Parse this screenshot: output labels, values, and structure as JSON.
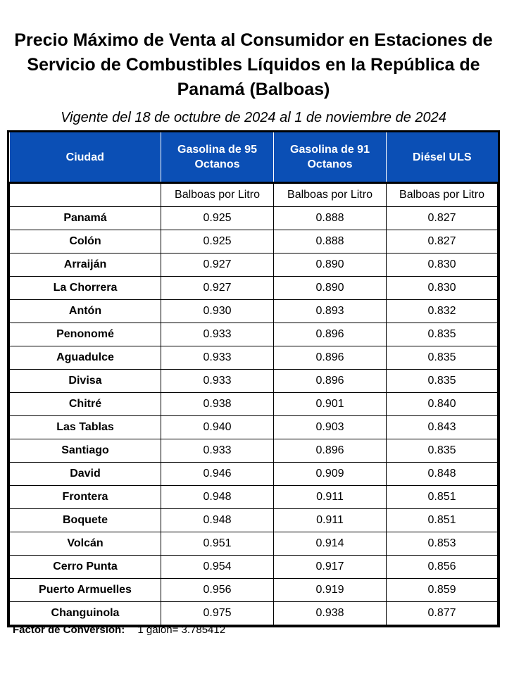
{
  "title": "Precio Máximo de Venta al Consumidor en Estaciones de Servicio de Combustibles Líquidos en la República de Panamá (Balboas)",
  "subtitle": "Vigente del 18 de octubre de 2024 al 1 de noviembre  de 2024",
  "table": {
    "headers": [
      "Ciudad",
      "Gasolina de 95 Octanos",
      "Gasolina de 91 Octanos",
      "Diésel ULS"
    ],
    "header_color": "#0b4fb5",
    "units": [
      "",
      "Balboas por Litro",
      "Balboas por Litro",
      "Balboas por Litro"
    ],
    "rows": [
      {
        "city": "Panamá",
        "g95": "0.925",
        "g91": "0.888",
        "diesel": "0.827"
      },
      {
        "city": "Colón",
        "g95": "0.925",
        "g91": "0.888",
        "diesel": "0.827"
      },
      {
        "city": "Arraiján",
        "g95": "0.927",
        "g91": "0.890",
        "diesel": "0.830"
      },
      {
        "city": "La Chorrera",
        "g95": "0.927",
        "g91": "0.890",
        "diesel": "0.830"
      },
      {
        "city": "Antón",
        "g95": "0.930",
        "g91": "0.893",
        "diesel": "0.832"
      },
      {
        "city": "Penonomé",
        "g95": "0.933",
        "g91": "0.896",
        "diesel": "0.835"
      },
      {
        "city": "Aguadulce",
        "g95": "0.933",
        "g91": "0.896",
        "diesel": "0.835"
      },
      {
        "city": "Divisa",
        "g95": "0.933",
        "g91": "0.896",
        "diesel": "0.835"
      },
      {
        "city": "Chitré",
        "g95": "0.938",
        "g91": "0.901",
        "diesel": "0.840"
      },
      {
        "city": "Las Tablas",
        "g95": "0.940",
        "g91": "0.903",
        "diesel": "0.843"
      },
      {
        "city": "Santiago",
        "g95": "0.933",
        "g91": "0.896",
        "diesel": "0.835"
      },
      {
        "city": "David",
        "g95": "0.946",
        "g91": "0.909",
        "diesel": "0.848"
      },
      {
        "city": "Frontera",
        "g95": "0.948",
        "g91": "0.911",
        "diesel": "0.851"
      },
      {
        "city": "Boquete",
        "g95": "0.948",
        "g91": "0.911",
        "diesel": "0.851"
      },
      {
        "city": "Volcán",
        "g95": "0.951",
        "g91": "0.914",
        "diesel": "0.853"
      },
      {
        "city": "Cerro Punta",
        "g95": "0.954",
        "g91": "0.917",
        "diesel": "0.856"
      },
      {
        "city": "Puerto Armuelles",
        "g95": "0.956",
        "g91": "0.919",
        "diesel": "0.859"
      },
      {
        "city": "Changuinola",
        "g95": "0.975",
        "g91": "0.938",
        "diesel": "0.877"
      }
    ]
  },
  "footer": {
    "label": "Factor de Conversión:",
    "value": "1 galón= 3.785412"
  }
}
